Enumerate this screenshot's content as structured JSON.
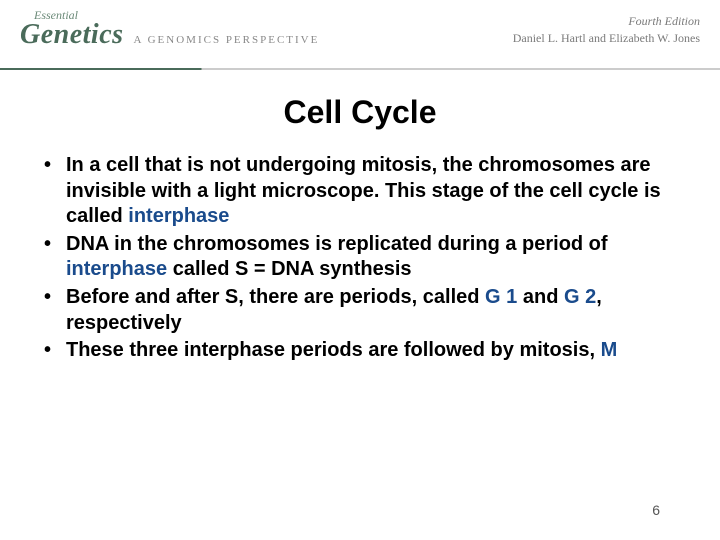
{
  "header": {
    "tagline": "Essential",
    "title": "Genetics",
    "subtitle": "A GENOMICS PERSPECTIVE",
    "edition": "Fourth Edition",
    "authors": "Daniel L. Hartl and Elizabeth W. Jones",
    "brand_color": "#4a6b5a",
    "rule_brand_color": "#4a6b5a",
    "rule_light_color": "#cccccc"
  },
  "slide": {
    "title": "Cell Cycle",
    "title_fontsize": 32,
    "body_fontsize": 20,
    "keyword_color": "#1a4b8c",
    "text_color": "#000000",
    "background_color": "#ffffff",
    "bullets": [
      {
        "pre": "In a cell that is not undergoing mitosis, the chromosomes are invisible with a light microscope. This stage of the cell cycle is called ",
        "kw": "interphase",
        "post": ""
      },
      {
        "pre": "DNA in the chromosomes is replicated during  a period of ",
        "kw": "interphase",
        "post": " called S = DNA synthesis"
      },
      {
        "pre": "Before and after S,  there are periods, called ",
        "kw": "G 1",
        "post1": " and ",
        "kw2": "G 2",
        "post2": ", respectively"
      },
      {
        "pre": "These three interphase periods are followed by mitosis, ",
        "kw": "M",
        "post": ""
      }
    ],
    "page_number": "6"
  }
}
